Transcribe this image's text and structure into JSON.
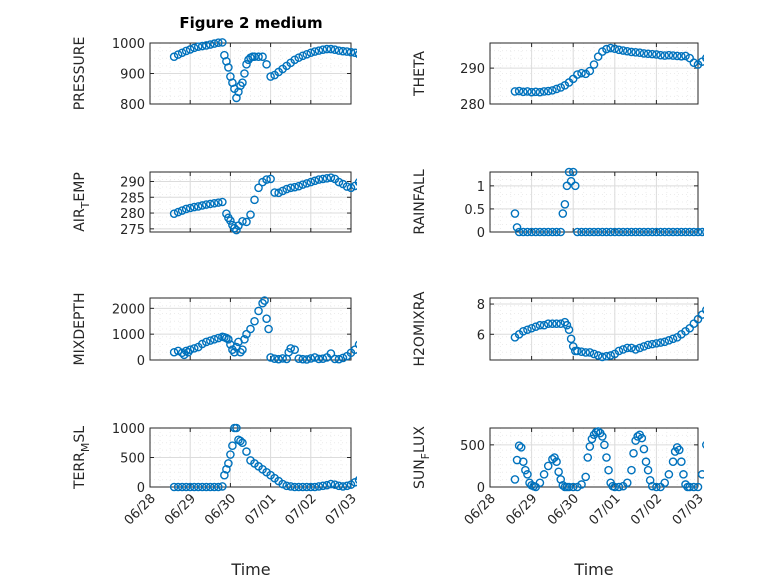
{
  "colors": {
    "marker": "#0072BD",
    "axis": "#262626",
    "grid": "#dcdcdc",
    "minorgrid": "#ececec"
  },
  "figure_title": "Figure 2 medium",
  "x_tick_labels": [
    "06/28",
    "06/29",
    "06/30",
    "07/01",
    "07/02",
    "07/03"
  ],
  "xlabel": "Time",
  "chart_data": [
    {
      "type": "scatter",
      "ylabel": "PRESSURE",
      "title": "Figure 2 medium",
      "xlim": [
        "06/28",
        "07/03"
      ],
      "ylim": [
        800,
        1000
      ],
      "yticks": [
        800,
        900,
        1000
      ],
      "grid": "on",
      "marker": "o",
      "x": [
        0.6,
        0.7,
        0.8,
        0.9,
        1.0,
        1.1,
        1.2,
        1.3,
        1.4,
        1.5,
        1.6,
        1.7,
        1.8,
        1.85,
        1.9,
        1.95,
        2.0,
        2.05,
        2.1,
        2.15,
        2.2,
        2.25,
        2.3,
        2.35,
        2.4,
        2.45,
        2.5,
        2.55,
        2.6,
        2.7,
        2.8,
        2.9,
        3.0,
        3.1,
        3.2,
        3.3,
        3.4,
        3.5,
        3.6,
        3.7,
        3.8,
        3.9,
        4.0,
        4.1,
        4.2,
        4.3,
        4.4,
        4.5,
        4.6,
        4.7,
        4.8,
        4.9,
        5.0,
        5.1,
        5.2,
        5.3,
        5.4
      ],
      "y": [
        955,
        962,
        968,
        974,
        979,
        984,
        988,
        990,
        992,
        995,
        998,
        1001,
        1002,
        960,
        940,
        920,
        890,
        870,
        850,
        820,
        840,
        860,
        870,
        900,
        930,
        945,
        952,
        955,
        955,
        955,
        955,
        930,
        890,
        895,
        905,
        915,
        925,
        935,
        945,
        952,
        958,
        963,
        968,
        972,
        975,
        978,
        980,
        980,
        978,
        975,
        973,
        972,
        970,
        968,
        963,
        960,
        962
      ]
    },
    {
      "type": "scatter",
      "ylabel": "THETA",
      "xlim": [
        "06/28",
        "07/03"
      ],
      "ylim": [
        280,
        297
      ],
      "yticks": [
        280,
        290
      ],
      "grid": "on",
      "marker": "o",
      "x": [
        0.6,
        0.7,
        0.8,
        0.9,
        1.0,
        1.1,
        1.2,
        1.3,
        1.4,
        1.5,
        1.6,
        1.7,
        1.8,
        1.9,
        2.0,
        2.1,
        2.2,
        2.3,
        2.4,
        2.5,
        2.6,
        2.7,
        2.8,
        2.9,
        3.0,
        3.1,
        3.2,
        3.3,
        3.4,
        3.5,
        3.6,
        3.7,
        3.8,
        3.9,
        4.0,
        4.1,
        4.2,
        4.3,
        4.4,
        4.5,
        4.6,
        4.7,
        4.8,
        4.9,
        5.0,
        5.1,
        5.2,
        5.3,
        5.4
      ],
      "y": [
        283.5,
        283.6,
        283.4,
        283.5,
        283.3,
        283.4,
        283.3,
        283.5,
        283.6,
        283.8,
        284.2,
        284.6,
        285.2,
        286,
        287,
        288.2,
        288.6,
        288.4,
        289.2,
        291,
        293.2,
        294.6,
        295.3,
        295.6,
        295.4,
        295.1,
        294.9,
        294.7,
        294.5,
        294.4,
        294.3,
        294.1,
        294.0,
        293.9,
        293.8,
        293.6,
        293.5,
        293.6,
        293.5,
        293.4,
        293.3,
        293.4,
        292.8,
        291.5,
        291.0,
        291.8,
        292.8,
        294.4,
        296.3
      ]
    },
    {
      "type": "scatter",
      "ylabel": "AIR_TEMP",
      "xlim": [
        "06/28",
        "07/03"
      ],
      "ylim": [
        274,
        293
      ],
      "yticks": [
        275,
        280,
        285,
        290
      ],
      "grid": "on",
      "marker": "o",
      "x": [
        0.6,
        0.7,
        0.8,
        0.9,
        1.0,
        1.1,
        1.2,
        1.3,
        1.4,
        1.5,
        1.6,
        1.7,
        1.8,
        1.9,
        1.95,
        2.0,
        2.05,
        2.1,
        2.15,
        2.2,
        2.3,
        2.4,
        2.5,
        2.6,
        2.7,
        2.8,
        2.9,
        3.0,
        3.1,
        3.2,
        3.3,
        3.4,
        3.5,
        3.6,
        3.7,
        3.8,
        3.9,
        4.0,
        4.1,
        4.2,
        4.3,
        4.4,
        4.5,
        4.6,
        4.7,
        4.8,
        4.9,
        5.0,
        5.1,
        5.2,
        5.3,
        5.4
      ],
      "y": [
        279.8,
        280.3,
        280.8,
        281.3,
        281.6,
        281.9,
        282.1,
        282.4,
        282.7,
        282.9,
        283.1,
        283.3,
        283.5,
        279.8,
        278.5,
        277.6,
        276.2,
        275.2,
        274.6,
        276,
        277.4,
        277.2,
        279.5,
        284.2,
        288,
        289.8,
        290.6,
        290.8,
        286.5,
        286.4,
        287,
        287.6,
        288,
        288.2,
        288.5,
        289,
        289.4,
        289.8,
        290.2,
        290.6,
        290.8,
        291.0,
        291.2,
        290.8,
        289.8,
        289.2,
        288.4,
        288.0,
        288.6,
        289.8,
        291.2,
        292.2
      ]
    },
    {
      "type": "scatter",
      "ylabel": "RAINFALL",
      "xlim": [
        "06/28",
        "07/03"
      ],
      "ylim": [
        0,
        1.3
      ],
      "yticks": [
        0,
        0.5,
        1
      ],
      "grid": "on",
      "marker": "o",
      "x": [
        0.6,
        0.65,
        0.7,
        0.8,
        0.9,
        1.0,
        1.1,
        1.2,
        1.3,
        1.4,
        1.5,
        1.6,
        1.7,
        1.75,
        1.8,
        1.85,
        1.9,
        1.95,
        2.0,
        2.05,
        2.1,
        2.2,
        2.3,
        2.4,
        2.5,
        2.6,
        2.7,
        2.8,
        2.9,
        3.0,
        3.1,
        3.2,
        3.3,
        3.4,
        3.5,
        3.6,
        3.7,
        3.8,
        3.9,
        4.0,
        4.1,
        4.2,
        4.3,
        4.4,
        4.5,
        4.6,
        4.7,
        4.8,
        4.9,
        5.0,
        5.1,
        5.2,
        5.3,
        5.4
      ],
      "y": [
        0.4,
        0.1,
        0,
        0,
        0,
        0,
        0,
        0,
        0,
        0,
        0,
        0,
        0,
        0.4,
        0.6,
        1.0,
        1.3,
        1.1,
        1.3,
        1.0,
        0,
        0,
        0,
        0,
        0,
        0,
        0,
        0,
        0,
        0,
        0,
        0,
        0,
        0,
        0,
        0,
        0,
        0,
        0,
        0,
        0,
        0,
        0,
        0,
        0,
        0,
        0,
        0,
        0,
        0,
        0,
        0,
        0,
        0
      ]
    },
    {
      "type": "scatter",
      "ylabel": "MIXDEPTH",
      "xlim": [
        "06/28",
        "07/03"
      ],
      "ylim": [
        0,
        2400
      ],
      "yticks": [
        0,
        1000,
        2000
      ],
      "grid": "on",
      "marker": "o",
      "x": [
        0.6,
        0.7,
        0.8,
        0.85,
        0.9,
        0.95,
        1.0,
        1.1,
        1.2,
        1.3,
        1.4,
        1.5,
        1.6,
        1.7,
        1.8,
        1.85,
        1.9,
        1.95,
        2.0,
        2.05,
        2.1,
        2.15,
        2.2,
        2.25,
        2.3,
        2.35,
        2.4,
        2.5,
        2.6,
        2.7,
        2.8,
        2.85,
        2.9,
        2.95,
        3.0,
        3.1,
        3.2,
        3.3,
        3.4,
        3.45,
        3.5,
        3.6,
        3.7,
        3.8,
        3.9,
        4.0,
        4.1,
        4.2,
        4.3,
        4.4,
        4.5,
        4.6,
        4.7,
        4.8,
        4.9,
        5.0,
        5.1,
        5.2,
        5.3,
        5.35,
        5.4
      ],
      "y": [
        300,
        350,
        280,
        200,
        350,
        300,
        400,
        450,
        500,
        620,
        700,
        750,
        800,
        850,
        900,
        880,
        850,
        800,
        600,
        400,
        300,
        500,
        700,
        300,
        400,
        800,
        1000,
        1200,
        1500,
        1900,
        2200,
        2300,
        1600,
        1200,
        100,
        50,
        30,
        60,
        40,
        300,
        450,
        400,
        50,
        30,
        20,
        60,
        100,
        40,
        50,
        100,
        250,
        40,
        30,
        80,
        150,
        280,
        400,
        600,
        900,
        1250,
        1300
      ]
    },
    {
      "type": "scatter",
      "ylabel": "H2OMIXRA",
      "xlim": [
        "06/28",
        "07/03"
      ],
      "ylim": [
        4.3,
        8.4
      ],
      "yticks": [
        6,
        8
      ],
      "grid": "on",
      "marker": "o",
      "x": [
        0.6,
        0.7,
        0.8,
        0.9,
        1.0,
        1.1,
        1.2,
        1.3,
        1.4,
        1.5,
        1.6,
        1.7,
        1.8,
        1.85,
        1.9,
        1.95,
        2.0,
        2.05,
        2.1,
        2.2,
        2.3,
        2.4,
        2.5,
        2.6,
        2.7,
        2.8,
        2.9,
        3.0,
        3.1,
        3.2,
        3.3,
        3.4,
        3.5,
        3.6,
        3.7,
        3.8,
        3.9,
        4.0,
        4.1,
        4.2,
        4.3,
        4.4,
        4.5,
        4.6,
        4.7,
        4.8,
        4.9,
        5.0,
        5.1,
        5.2,
        5.3,
        5.4
      ],
      "y": [
        5.8,
        6.0,
        6.2,
        6.3,
        6.4,
        6.5,
        6.6,
        6.6,
        6.7,
        6.7,
        6.7,
        6.7,
        6.8,
        6.6,
        6.3,
        5.7,
        5.2,
        4.9,
        4.9,
        4.85,
        4.8,
        4.8,
        4.7,
        4.6,
        4.5,
        4.55,
        4.6,
        4.7,
        4.9,
        5.0,
        5.1,
        5.1,
        5.0,
        5.1,
        5.2,
        5.3,
        5.35,
        5.4,
        5.45,
        5.5,
        5.6,
        5.7,
        5.8,
        6.0,
        6.2,
        6.4,
        6.7,
        7.0,
        7.3,
        7.6,
        7.9,
        8.2
      ]
    },
    {
      "type": "scatter",
      "ylabel": "TERR_MSL",
      "xlim": [
        "06/28",
        "07/03"
      ],
      "ylim": [
        0,
        1000
      ],
      "yticks": [
        0,
        500,
        1000
      ],
      "grid": "on",
      "marker": "o",
      "x": [
        0.6,
        0.7,
        0.8,
        0.9,
        1.0,
        1.1,
        1.2,
        1.3,
        1.4,
        1.5,
        1.6,
        1.7,
        1.8,
        1.85,
        1.9,
        1.95,
        2.0,
        2.05,
        2.1,
        2.15,
        2.2,
        2.25,
        2.3,
        2.4,
        2.5,
        2.6,
        2.7,
        2.8,
        2.9,
        3.0,
        3.1,
        3.2,
        3.3,
        3.4,
        3.5,
        3.6,
        3.7,
        3.8,
        3.9,
        4.0,
        4.1,
        4.2,
        4.3,
        4.4,
        4.5,
        4.6,
        4.7,
        4.8,
        4.9,
        5.0,
        5.1,
        5.2,
        5.3,
        5.4
      ],
      "y": [
        0,
        0,
        0,
        0,
        0,
        0,
        0,
        0,
        0,
        0,
        0,
        0,
        10,
        200,
        300,
        400,
        550,
        700,
        1000,
        1000,
        800,
        780,
        750,
        600,
        450,
        400,
        350,
        300,
        250,
        200,
        150,
        100,
        50,
        20,
        10,
        0,
        0,
        0,
        0,
        0,
        0,
        10,
        20,
        30,
        50,
        40,
        20,
        10,
        20,
        40,
        80,
        120,
        140,
        150
      ]
    },
    {
      "type": "scatter",
      "ylabel": "SUN_FLUX",
      "xlim": [
        "06/28",
        "07/03"
      ],
      "ylim": [
        0,
        700
      ],
      "yticks": [
        0,
        500
      ],
      "grid": "on",
      "marker": "o",
      "x": [
        0.6,
        0.65,
        0.7,
        0.75,
        0.8,
        0.85,
        0.9,
        0.95,
        1.0,
        1.05,
        1.1,
        1.2,
        1.3,
        1.4,
        1.5,
        1.55,
        1.6,
        1.65,
        1.7,
        1.75,
        1.8,
        1.85,
        1.9,
        2.0,
        2.1,
        2.2,
        2.3,
        2.35,
        2.4,
        2.45,
        2.5,
        2.55,
        2.6,
        2.65,
        2.7,
        2.75,
        2.8,
        2.85,
        2.9,
        2.95,
        3.0,
        3.1,
        3.2,
        3.3,
        3.4,
        3.45,
        3.5,
        3.55,
        3.6,
        3.65,
        3.7,
        3.75,
        3.8,
        3.85,
        3.9,
        4.0,
        4.1,
        4.2,
        4.3,
        4.4,
        4.45,
        4.5,
        4.55,
        4.6,
        4.65,
        4.7,
        4.75,
        4.8,
        4.9,
        5.0,
        5.1,
        5.2,
        5.3,
        5.4
      ],
      "y": [
        90,
        320,
        490,
        470,
        300,
        200,
        150,
        50,
        20,
        10,
        0,
        50,
        150,
        250,
        330,
        350,
        300,
        180,
        90,
        20,
        0,
        0,
        0,
        0,
        0,
        30,
        120,
        350,
        480,
        570,
        620,
        650,
        660,
        640,
        600,
        500,
        350,
        200,
        50,
        10,
        0,
        0,
        10,
        50,
        200,
        400,
        550,
        600,
        620,
        580,
        450,
        300,
        200,
        80,
        10,
        0,
        0,
        50,
        150,
        300,
        420,
        470,
        440,
        300,
        150,
        30,
        0,
        0,
        0,
        0,
        150,
        500,
        450,
        380
      ]
    }
  ]
}
